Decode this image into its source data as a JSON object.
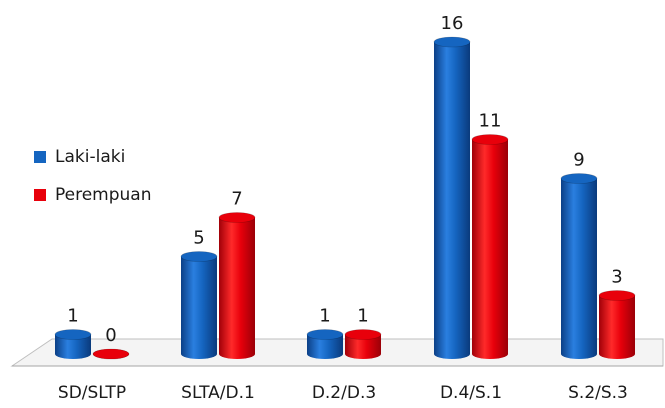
{
  "chart_data": {
    "type": "bar",
    "title": "",
    "xlabel": "",
    "ylabel": "",
    "categories": [
      "SD/SLTP",
      "SLTA/D.1",
      "D.2/D.3",
      "D.4/S.1",
      "S.2/S.3"
    ],
    "series": [
      {
        "name": "Laki-laki",
        "color": "#1565C0",
        "values": [
          1,
          5,
          1,
          16,
          9
        ]
      },
      {
        "name": "Perempuan",
        "color": "#E8000B",
        "values": [
          0,
          7,
          1,
          11,
          3
        ]
      }
    ],
    "ylim": [
      0,
      16
    ],
    "grid": false,
    "legend_position": "left",
    "data_labels": true,
    "style": "3d-cylinder"
  }
}
